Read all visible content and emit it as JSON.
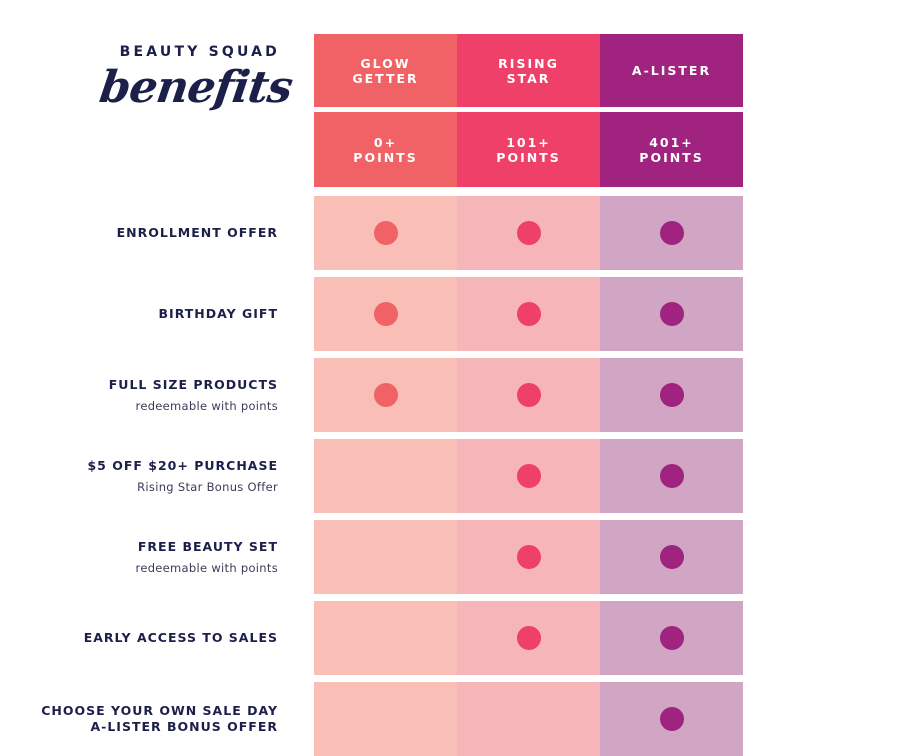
{
  "brand": {
    "top": "BEAUTY SQUAD",
    "script": "benefits"
  },
  "colors": {
    "tier_header": [
      "#f06265",
      "#ee4068",
      "#a0237f"
    ],
    "tier_body": [
      "#f9bfb6",
      "#f6b5b8",
      "#d0a6c4"
    ],
    "tier_dot": [
      "#f06265",
      "#ee4068",
      "#a0237f"
    ]
  },
  "tiers": [
    {
      "name_line1": "GLOW",
      "name_line2": "GETTER",
      "points_line1": "0+",
      "points_line2": "POINTS"
    },
    {
      "name_line1": "RISING",
      "name_line2": "STAR",
      "points_line1": "101+",
      "points_line2": "POINTS"
    },
    {
      "name_line1": "A-LISTER",
      "name_line2": "",
      "points_line1": "401+",
      "points_line2": "POINTS"
    }
  ],
  "benefits": [
    {
      "title": "ENROLLMENT OFFER",
      "title2": "",
      "subtitle": "",
      "tiers": [
        true,
        true,
        true
      ]
    },
    {
      "title": "BIRTHDAY GIFT",
      "title2": "",
      "subtitle": "",
      "tiers": [
        true,
        true,
        true
      ]
    },
    {
      "title": "FULL SIZE PRODUCTS",
      "title2": "",
      "subtitle": "redeemable with points",
      "tiers": [
        true,
        true,
        true
      ]
    },
    {
      "title": "$5 OFF $20+ PURCHASE",
      "title2": "",
      "subtitle": "Rising Star Bonus Offer",
      "tiers": [
        false,
        true,
        true
      ]
    },
    {
      "title": "FREE BEAUTY SET",
      "title2": "",
      "subtitle": "redeemable with points",
      "tiers": [
        false,
        true,
        true
      ]
    },
    {
      "title": "EARLY ACCESS TO SALES",
      "title2": "",
      "subtitle": "",
      "tiers": [
        false,
        true,
        true
      ]
    },
    {
      "title": "CHOOSE YOUR OWN SALE DAY",
      "title2": "A-LISTER BONUS OFFER",
      "subtitle": "",
      "tiers": [
        false,
        false,
        true
      ]
    }
  ]
}
